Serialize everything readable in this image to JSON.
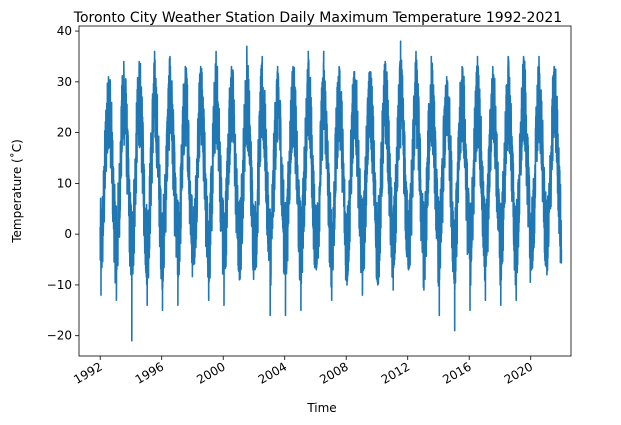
{
  "chart_data": {
    "type": "line",
    "title": "Toronto City Weather Station Daily Maximum Temperature 1992-2021",
    "xlabel": "Time",
    "ylabel": "Temperature (˚C)",
    "x_type": "date",
    "xlim": [
      "1990-08-15",
      "2022-08-15"
    ],
    "ylim": [
      -24,
      41
    ],
    "x_ticks": [
      {
        "date": "1992-01-01",
        "label": "1992"
      },
      {
        "date": "1996-01-01",
        "label": "1996"
      },
      {
        "date": "2000-01-01",
        "label": "2000"
      },
      {
        "date": "2004-01-01",
        "label": "2004"
      },
      {
        "date": "2008-01-01",
        "label": "2008"
      },
      {
        "date": "2012-01-01",
        "label": "2012"
      },
      {
        "date": "2016-01-01",
        "label": "2016"
      },
      {
        "date": "2020-01-01",
        "label": "2020"
      }
    ],
    "y_ticks": [
      -20,
      -10,
      0,
      10,
      20,
      30,
      40
    ],
    "grid": false,
    "series_color": "#1f77b4",
    "series": [
      {
        "date_range": [
          "1992-01-01",
          "2021-12-31"
        ],
        "values_yearly": [
          {
            "year": 1992,
            "max": 31,
            "min": -12
          },
          {
            "year": 1993,
            "max": 34,
            "min": -13
          },
          {
            "year": 1994,
            "max": 34,
            "min": -21
          },
          {
            "year": 1995,
            "max": 36,
            "min": -14
          },
          {
            "year": 1996,
            "max": 35,
            "min": -15
          },
          {
            "year": 1997,
            "max": 33,
            "min": -14
          },
          {
            "year": 1998,
            "max": 33,
            "min": -6
          },
          {
            "year": 1999,
            "max": 36,
            "min": -13
          },
          {
            "year": 2000,
            "max": 33,
            "min": -14
          },
          {
            "year": 2001,
            "max": 37,
            "min": -9
          },
          {
            "year": 2002,
            "max": 35,
            "min": -7
          },
          {
            "year": 2003,
            "max": 33,
            "min": -16
          },
          {
            "year": 2004,
            "max": 33,
            "min": -16
          },
          {
            "year": 2005,
            "max": 36,
            "min": -15
          },
          {
            "year": 2006,
            "max": 36,
            "min": -7
          },
          {
            "year": 2007,
            "max": 33,
            "min": -13
          },
          {
            "year": 2008,
            "max": 32,
            "min": -10
          },
          {
            "year": 2009,
            "max": 32,
            "min": -12
          },
          {
            "year": 2010,
            "max": 34,
            "min": -10
          },
          {
            "year": 2011,
            "max": 38,
            "min": -11
          },
          {
            "year": 2012,
            "max": 36,
            "min": -7
          },
          {
            "year": 2013,
            "max": 35,
            "min": -11
          },
          {
            "year": 2014,
            "max": 31,
            "min": -16
          },
          {
            "year": 2015,
            "max": 33,
            "min": -19
          },
          {
            "year": 2016,
            "max": 35,
            "min": -15
          },
          {
            "year": 2017,
            "max": 33,
            "min": -13
          },
          {
            "year": 2018,
            "max": 35,
            "min": -14
          },
          {
            "year": 2019,
            "max": 35,
            "min": -13
          },
          {
            "year": 2020,
            "max": 35,
            "min": -7
          },
          {
            "year": 2021,
            "max": 33,
            "min": -8
          }
        ],
        "final_value": -3
      }
    ]
  }
}
